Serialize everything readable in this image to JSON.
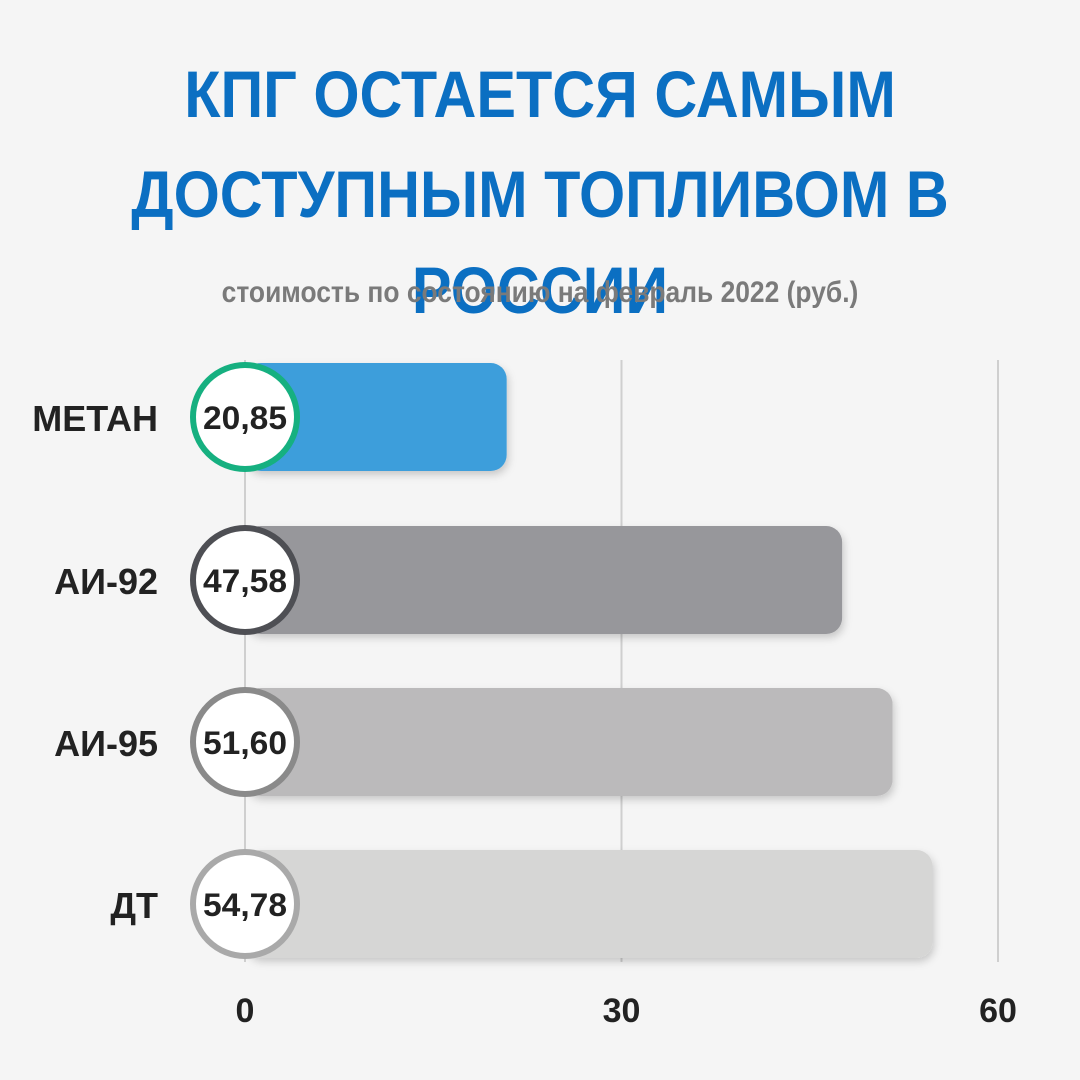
{
  "header": {
    "title_line1": "КПГ ОСТАЕТСЯ САМЫМ",
    "title_line2": "ДОСТУПНЫМ ТОПЛИВОМ В РОССИИ",
    "subtitle": "стоимость по состоянию на февраль 2022 (руб.)"
  },
  "chart_data": {
    "type": "bar",
    "orientation": "horizontal",
    "title": "КПГ ОСТАЕТСЯ САМЫМ ДОСТУПНЫМ ТОПЛИВОМ В РОССИИ",
    "subtitle": "стоимость по состоянию на февраль 2022 (руб.)",
    "categories": [
      "МЕТАН",
      "АИ-92",
      "АИ-95",
      "ДТ"
    ],
    "values": [
      20.85,
      47.58,
      51.6,
      54.78
    ],
    "value_labels": [
      "20,85",
      "47,58",
      "51,60",
      "54,78"
    ],
    "xlim": [
      0,
      60
    ],
    "x_ticks": [
      0,
      30,
      60
    ],
    "x_tick_labels": [
      "0",
      "30",
      "60"
    ],
    "grid": true,
    "colors": {
      "bars": [
        "#3d9edb",
        "#97979b",
        "#bbbabb",
        "#d6d6d5"
      ],
      "rings": [
        "#16b080",
        "#4e4f54",
        "#8a8a8a",
        "#a9a9a9"
      ],
      "title": "#0b6fc2",
      "subtitle": "#7a7a7a",
      "label": "#222222",
      "grid": "#cfcfcf"
    }
  }
}
